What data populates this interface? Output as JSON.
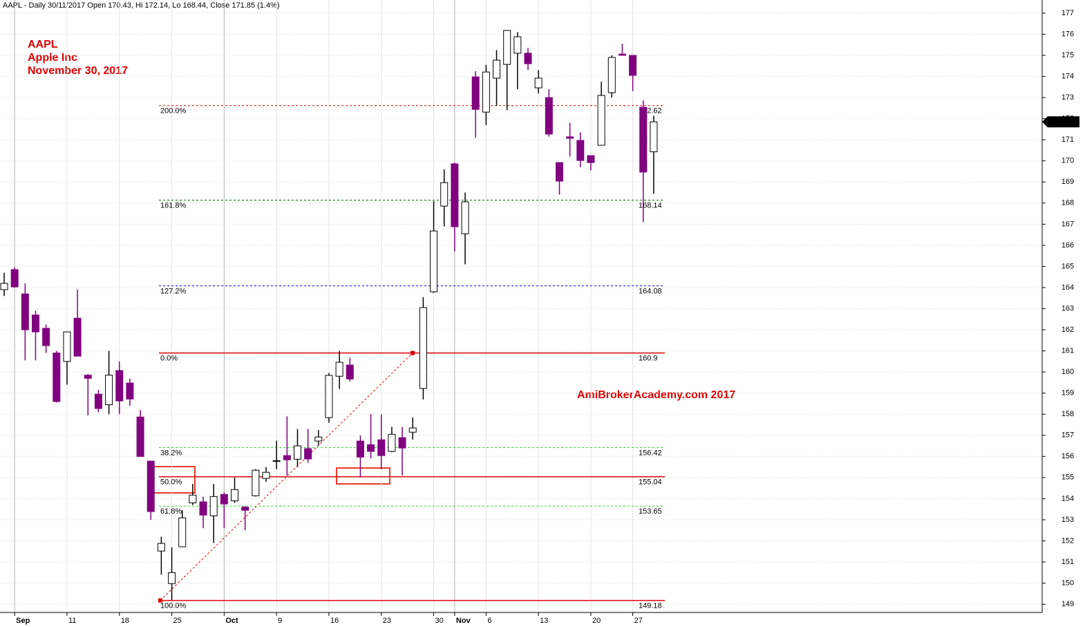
{
  "chart_data": {
    "type": "candlestick",
    "header": "AAPL - Daily 30/11/2017 Open 170.43, Hi 172.14, Lo 168.44, Close 171.85 (1.4%)",
    "annotations": [
      "AAPL",
      "Apple Inc",
      "November 30, 2017"
    ],
    "watermark": "AmiBrokerAcademy.com  2017",
    "categories": [
      null,
      "Sep",
      null,
      null,
      null,
      null,
      "11",
      null,
      null,
      null,
      null,
      "18",
      null,
      null,
      null,
      null,
      "25",
      null,
      null,
      null,
      null,
      "Oct",
      null,
      null,
      null,
      null,
      "9",
      null,
      null,
      null,
      null,
      "16",
      null,
      null,
      null,
      null,
      "23",
      null,
      null,
      null,
      null,
      "30",
      null,
      "Nov",
      null,
      null,
      "6",
      null,
      null,
      null,
      null,
      "13",
      null,
      null,
      null,
      null,
      "20",
      null,
      null,
      null,
      "27",
      null,
      null
    ],
    "open": [
      163.9,
      164.85,
      163.7,
      162.7,
      162.07,
      160.9,
      160.5,
      162.55,
      159.85,
      158.95,
      158.45,
      160.07,
      159.48,
      157.87,
      155.78,
      151.52,
      149.98,
      151.72,
      153.8,
      153.85,
      153.19,
      154.2,
      153.9,
      153.6,
      154.14,
      154.96,
      155.8,
      156.04,
      155.87,
      156.37,
      156.73,
      157.84,
      159.8,
      160.33,
      156.73,
      156.56,
      156.79,
      156.24,
      156.89,
      157.15,
      159.22,
      163.8,
      167.86,
      169.86,
      166.55,
      173.98,
      172.31,
      173.92,
      174.57,
      175.1,
      175.1,
      173.46,
      173.0,
      169.92,
      171.14,
      170.97,
      170.25,
      170.74,
      173.23,
      175.06,
      175.0,
      172.54,
      170.43
    ],
    "high": [
      164.7,
      164.95,
      164.2,
      162.9,
      162.25,
      161.0,
      161.8,
      163.9,
      159.9,
      159.15,
      161.0,
      160.5,
      159.7,
      158.2,
      155.8,
      152.2,
      151.7,
      153.45,
      154.7,
      154.1,
      154.7,
      154.3,
      155.0,
      153.65,
      155.4,
      155.5,
      156.75,
      157.9,
      157.3,
      157.3,
      157.25,
      159.95,
      161.0,
      160.67,
      157.0,
      158.0,
      158.0,
      157.4,
      157.4,
      157.85,
      163.55,
      168.1,
      169.6,
      169.92,
      168.5,
      174.25,
      174.55,
      175.25,
      176.2,
      176.1,
      175.35,
      174.3,
      173.4,
      169.92,
      171.8,
      171.35,
      170.25,
      173.75,
      175.0,
      175.55,
      175.0,
      172.87,
      172.14
    ],
    "low": [
      163.6,
      164.0,
      160.55,
      160.55,
      160.9,
      158.55,
      159.4,
      160.75,
      157.94,
      158.1,
      158.0,
      158.0,
      158.4,
      156.0,
      153.0,
      150.4,
      149.2,
      151.72,
      153.7,
      152.6,
      151.9,
      152.6,
      153.8,
      152.5,
      154.1,
      154.8,
      155.4,
      155.1,
      155.5,
      155.7,
      156.5,
      157.6,
      159.2,
      159.55,
      155.0,
      155.9,
      155.4,
      156.2,
      155.1,
      156.8,
      158.7,
      163.75,
      166.9,
      165.7,
      165.1,
      171.1,
      171.7,
      172.6,
      172.4,
      173.4,
      174.3,
      173.2,
      171.15,
      168.4,
      170.2,
      169.7,
      169.55,
      170.74,
      173.0,
      175.0,
      173.3,
      167.1,
      168.44
    ],
    "close": [
      164.2,
      164.03,
      162.0,
      161.9,
      161.25,
      158.6,
      161.9,
      160.75,
      159.7,
      158.27,
      159.85,
      158.63,
      158.72,
      156.0,
      153.39,
      151.88,
      150.5,
      153.09,
      154.17,
      153.22,
      154.1,
      153.75,
      154.43,
      153.45,
      155.35,
      155.25,
      155.8,
      155.84,
      156.5,
      155.88,
      156.92,
      159.84,
      160.46,
      159.67,
      155.97,
      156.24,
      156.04,
      157.05,
      156.4,
      157.35,
      163.05,
      166.68,
      168.97,
      166.88,
      168.06,
      172.44,
      174.21,
      174.77,
      176.18,
      175.88,
      174.6,
      173.92,
      171.27,
      169.04,
      171.07,
      170.02,
      169.92,
      173.1,
      174.9,
      175.0,
      174.05,
      169.47,
      171.85
    ],
    "up_color": "#ffffff",
    "down_color": "#800080",
    "ylim": [
      148.61,
      177.62
    ],
    "yticks": [
      149,
      150,
      151,
      152,
      153,
      154,
      155,
      156,
      157,
      158,
      159,
      160,
      161,
      162,
      163,
      164,
      165,
      166,
      167,
      168,
      169,
      170,
      171,
      172,
      173,
      174,
      175,
      176,
      177
    ],
    "grid": true,
    "fib_levels": [
      {
        "ratio": "200.0%",
        "value": 172.62,
        "color": "#e00000",
        "dashed": true
      },
      {
        "ratio": "161.8%",
        "value": 168.14,
        "color": "#006400",
        "dashed": true
      },
      {
        "ratio": "127.2%",
        "value": 164.08,
        "color": "#0000ee",
        "dashed": true
      },
      {
        "ratio": "0.0%",
        "value": 160.9,
        "color": "#e00000",
        "dashed": false
      },
      {
        "ratio": "38.2%",
        "value": 156.42,
        "color": "#22dd22",
        "dashed": true
      },
      {
        "ratio": "50.0%",
        "value": 155.04,
        "color": "#e00000",
        "dashed": false
      },
      {
        "ratio": "61.8%",
        "value": 153.65,
        "color": "#22dd22",
        "dashed": true
      },
      {
        "ratio": "100.0%",
        "value": 149.18,
        "color": "#e00000",
        "dashed": false
      }
    ]
  }
}
